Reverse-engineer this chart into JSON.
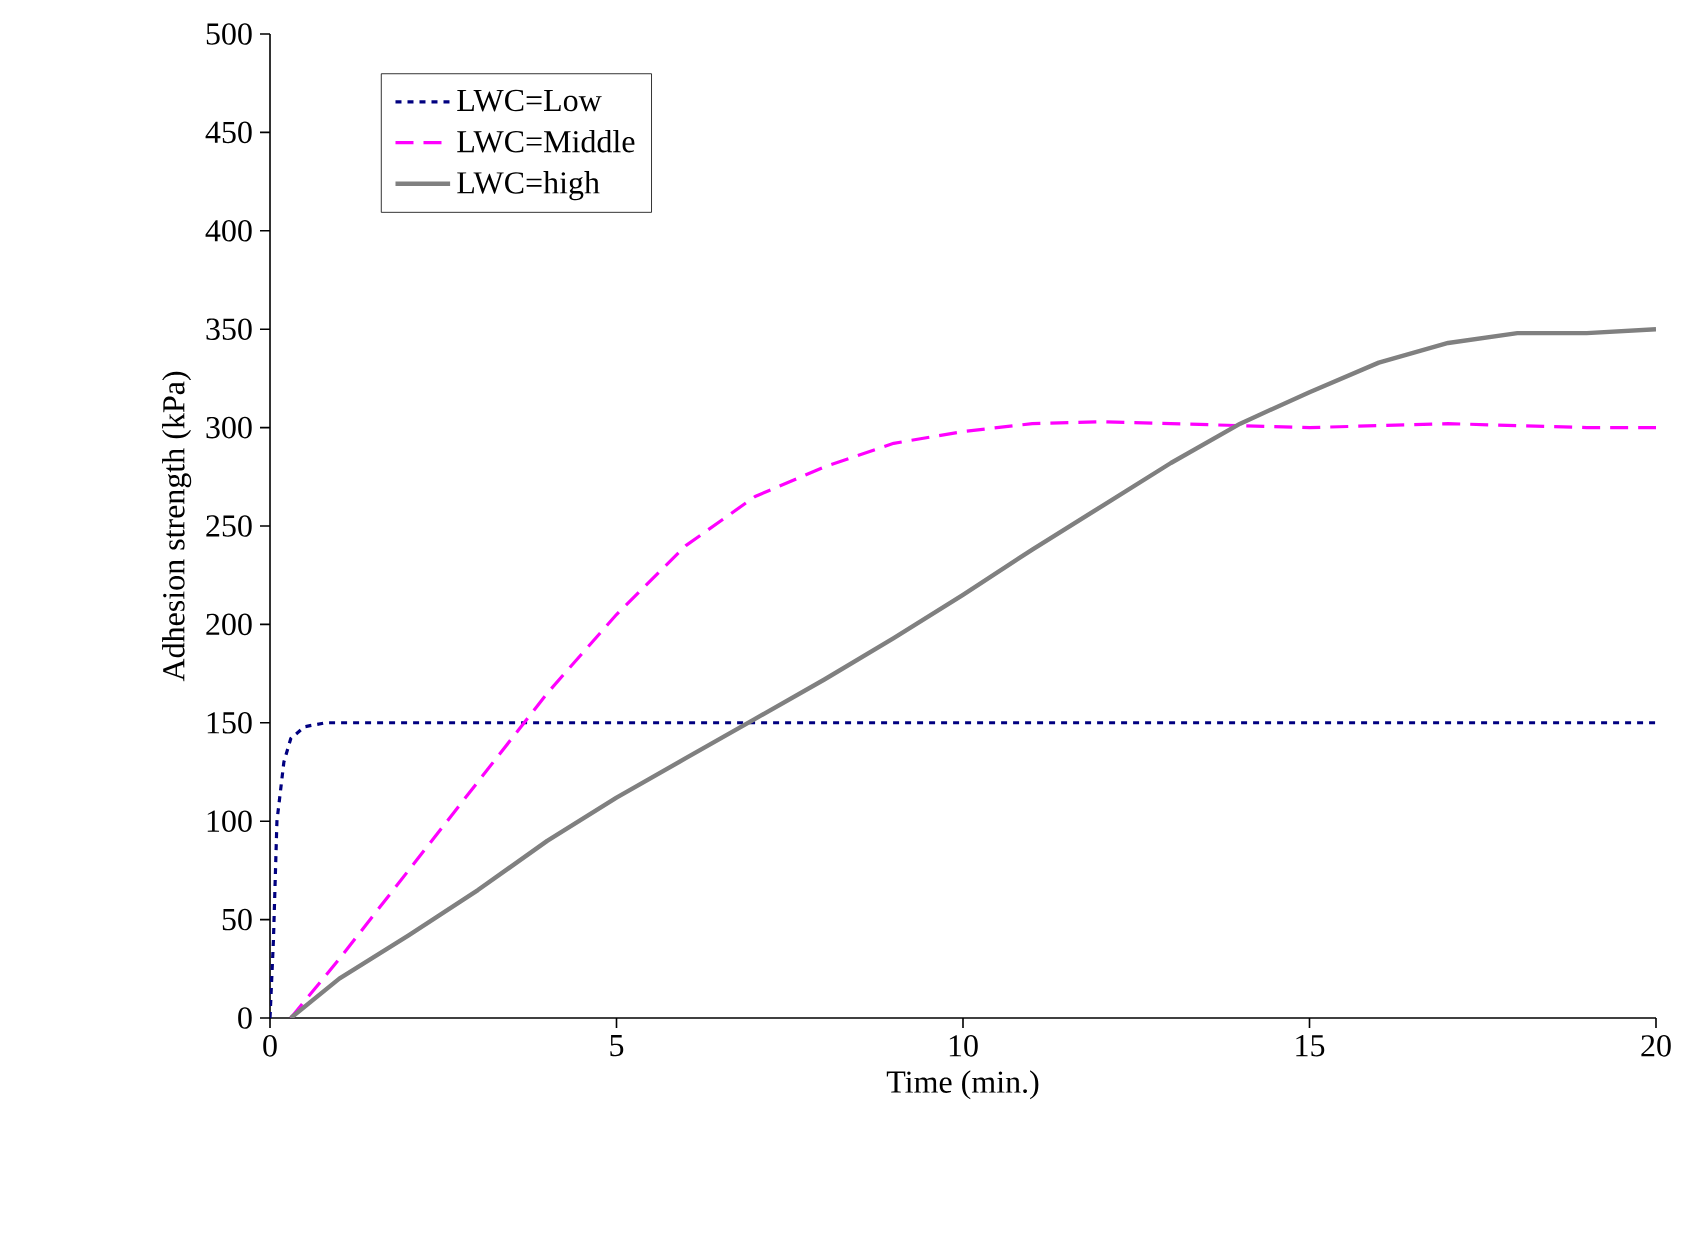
{
  "chart_data": {
    "type": "line",
    "xlabel": "Time (min.)",
    "ylabel": "Adhesion strength (kPa)",
    "xlim": [
      0,
      20
    ],
    "ylim": [
      0,
      500
    ],
    "xticks": [
      0,
      5,
      10,
      15,
      20
    ],
    "yticks": [
      0,
      50,
      100,
      150,
      200,
      250,
      300,
      350,
      400,
      450,
      500
    ],
    "grid": false,
    "legend": "top left",
    "marker": "none",
    "series": [
      {
        "name": "LWC=Low",
        "color": "#000080",
        "line_style": "dotted",
        "x": [
          0,
          0.05,
          0.1,
          0.2,
          0.3,
          0.5,
          0.8,
          1,
          2,
          5,
          10,
          15,
          20
        ],
        "values": [
          0,
          40,
          100,
          130,
          142,
          148,
          150,
          150,
          150,
          150,
          150,
          150,
          150
        ]
      },
      {
        "name": "LWC=Middle",
        "color": "#ff00ff",
        "line_style": "dashed",
        "x": [
          0.3,
          1,
          2,
          3,
          4,
          5,
          6,
          7,
          8,
          9,
          10,
          11,
          12,
          13,
          14,
          15,
          16,
          17,
          18,
          19,
          20
        ],
        "values": [
          0,
          30,
          75,
          120,
          165,
          205,
          240,
          265,
          280,
          292,
          298,
          302,
          303,
          302,
          301,
          300,
          301,
          302,
          301,
          300,
          300
        ]
      },
      {
        "name": "LWC=high",
        "color": "#808080",
        "line_style": "solid",
        "x": [
          0.3,
          1,
          2,
          3,
          4,
          5,
          6,
          7,
          8,
          9,
          10,
          11,
          12,
          13,
          14,
          15,
          16,
          17,
          18,
          19,
          20
        ],
        "values": [
          0,
          20,
          42,
          65,
          90,
          112,
          132,
          152,
          172,
          193,
          215,
          238,
          260,
          282,
          302,
          318,
          333,
          343,
          348,
          348,
          350
        ]
      }
    ]
  }
}
